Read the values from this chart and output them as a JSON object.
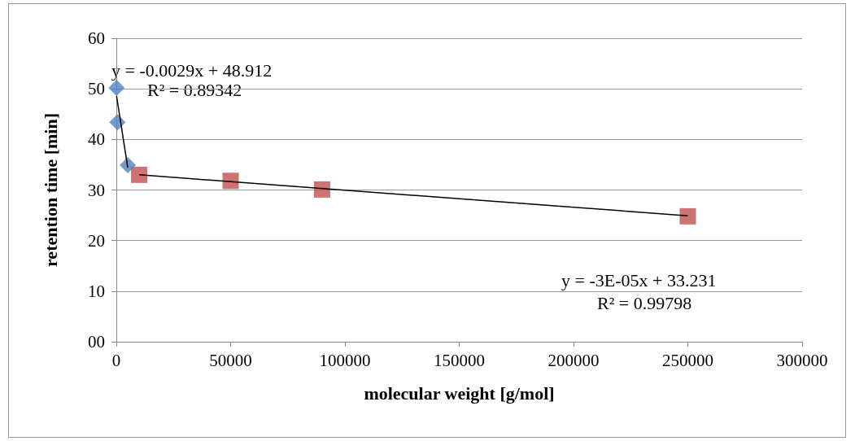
{
  "chart_data": {
    "type": "scatter",
    "xlabel": "molecular weight [g/mol]",
    "ylabel": "retention time [min]",
    "xlim": [
      0,
      300000
    ],
    "xticks": [
      0,
      50000,
      100000,
      150000,
      200000,
      250000,
      300000
    ],
    "ylim": [
      0,
      60
    ],
    "yticks": [
      {
        "value": 0,
        "label": "00"
      },
      10,
      20,
      30,
      40,
      50,
      60
    ],
    "grid": "y",
    "annotations": [
      "y = -0.0029x + 48.912\nR² = 0.89342",
      "y = -3E-05x + 33.231\nR² = 0.99798"
    ],
    "series": [
      {
        "marker": "diamond",
        "color": "#4f81bd",
        "x": [
          100,
          500,
          5000
        ],
        "values": [
          50.2,
          43.4,
          34.9
        ]
      },
      {
        "marker": "square",
        "color": "#c0504d",
        "x": [
          10000,
          50000,
          90000,
          250000
        ],
        "values": [
          33.0,
          31.8,
          30.1,
          24.8
        ]
      },
      {
        "type": "line",
        "marker": "none",
        "color": "#000000",
        "x": [
          100,
          5000
        ],
        "values": [
          48.6,
          34.4
        ]
      },
      {
        "type": "line",
        "marker": "none",
        "color": "#000000",
        "x": [
          10000,
          250000
        ],
        "values": [
          33.0,
          24.9
        ]
      }
    ]
  }
}
